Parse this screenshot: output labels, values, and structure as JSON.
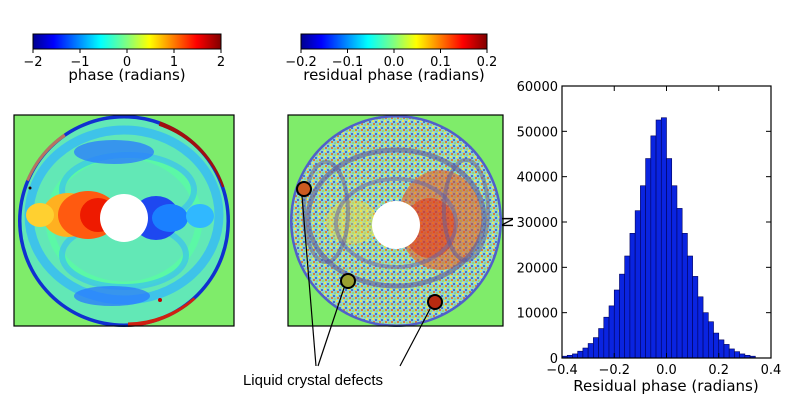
{
  "colorbars": [
    {
      "ticks": [
        "−2",
        "−1",
        "0",
        "1",
        "2"
      ],
      "label": "phase (radians)"
    },
    {
      "ticks": [
        "−0.2",
        "−0.1",
        "0.0",
        "0.1",
        "0.2"
      ],
      "label": "residual phase (radians)"
    }
  ],
  "annotation": {
    "text": "Liquid crystal defects"
  },
  "colors": {
    "bar": "#0a24e0",
    "bar_edge": "#00005a",
    "map_background": "#7fec6a"
  },
  "chart_data": [
    {
      "type": "heatmap",
      "colorbar": {
        "ticks": [
          -2,
          -1,
          0,
          1,
          2
        ],
        "label": "phase (radians)",
        "range": [
          -2,
          2
        ],
        "colormap": "jet"
      }
    },
    {
      "type": "heatmap",
      "colorbar": {
        "ticks": [
          -0.2,
          -0.1,
          0.0,
          0.1,
          0.2
        ],
        "label": "residual phase (radians)",
        "range": [
          -0.2,
          0.2
        ],
        "colormap": "jet"
      },
      "annotations": [
        "Liquid crystal defects"
      ]
    },
    {
      "type": "bar",
      "xlabel": "Residual phase (radians)",
      "ylabel": "N",
      "xlim": [
        -0.4,
        0.4
      ],
      "ylim": [
        0,
        60000
      ],
      "xticks": [
        "−0.4",
        "−0.2",
        "0.0",
        "0.2",
        "0.4"
      ],
      "yticks": [
        "0",
        "10000",
        "20000",
        "30000",
        "40000",
        "50000",
        "60000"
      ],
      "bin_width": 0.02,
      "bin_start": -0.4,
      "values": [
        400,
        600,
        900,
        1500,
        2200,
        3200,
        4500,
        6500,
        9000,
        11500,
        15000,
        18500,
        22500,
        27500,
        32500,
        38000,
        44000,
        49000,
        52500,
        53000,
        44000,
        38000,
        33000,
        27500,
        22500,
        18000,
        13500,
        10000,
        8000,
        5500,
        4000,
        3000,
        2000,
        1400,
        900,
        600,
        400
      ]
    }
  ]
}
